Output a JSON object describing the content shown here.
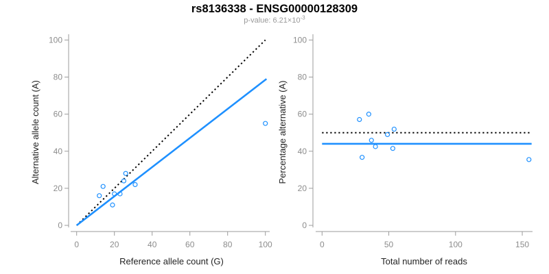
{
  "header": {
    "title": "rs8136338 - ENSG00000128309",
    "p_value_prefix": "p-value: 6.21×10",
    "p_value_exponent": "-3"
  },
  "colors": {
    "point_blue": "#1E90FF",
    "fit_blue": "#1E90FF",
    "reference_line_black": "#000000",
    "axis_gray": "#9b9b9b",
    "tick_label_gray": "#8c8c8c",
    "axis_title_color": "#222222",
    "subtitle_gray": "#999999"
  },
  "chart_data": [
    {
      "type": "scatter",
      "name": "alt-vs-ref-counts",
      "xlabel": "Reference allele count (G)",
      "ylabel": "Alternative allele count (A)",
      "xlim": [
        0,
        100
      ],
      "ylim": [
        0,
        100
      ],
      "xticks": [
        0,
        20,
        40,
        60,
        80,
        100
      ],
      "yticks": [
        0,
        20,
        40,
        60,
        80,
        100
      ],
      "grid": false,
      "points": [
        [
          12,
          16
        ],
        [
          14,
          21
        ],
        [
          19,
          11
        ],
        [
          20,
          17
        ],
        [
          23,
          17
        ],
        [
          25,
          24
        ],
        [
          26,
          28
        ],
        [
          31,
          22
        ],
        [
          100,
          55
        ]
      ],
      "lines": [
        {
          "name": "identity-line",
          "style": "dotted",
          "color": "#000000",
          "x1": 0,
          "y1": 0,
          "x2": 100,
          "y2": 100
        },
        {
          "name": "fit-line",
          "style": "solid",
          "color": "#1E90FF",
          "x1": 0,
          "y1": 0,
          "x2": 100.6,
          "y2": 79
        }
      ]
    },
    {
      "type": "scatter",
      "name": "pct-alt-vs-total-reads",
      "xlabel": "Total number of reads",
      "ylabel": "Percentage alternative (A)",
      "xlim": [
        0,
        157
      ],
      "ylim": [
        0,
        100
      ],
      "xticks": [
        0,
        50,
        100,
        150
      ],
      "yticks": [
        0,
        20,
        40,
        60,
        80,
        100
      ],
      "grid": false,
      "points": [
        [
          28,
          57.1
        ],
        [
          30,
          36.7
        ],
        [
          35,
          60
        ],
        [
          37,
          45.9
        ],
        [
          40,
          42.5
        ],
        [
          49,
          49
        ],
        [
          53,
          41.5
        ],
        [
          54,
          51.9
        ],
        [
          155,
          35.5
        ]
      ],
      "lines": [
        {
          "name": "expected-50pct-line",
          "style": "dotted",
          "color": "#000000",
          "x1": 0,
          "y1": 50,
          "x2": 157,
          "y2": 50
        },
        {
          "name": "observed-mean-pct-line",
          "style": "solid",
          "color": "#1E90FF",
          "x1": 0,
          "y1": 44,
          "x2": 157,
          "y2": 44
        }
      ]
    }
  ]
}
